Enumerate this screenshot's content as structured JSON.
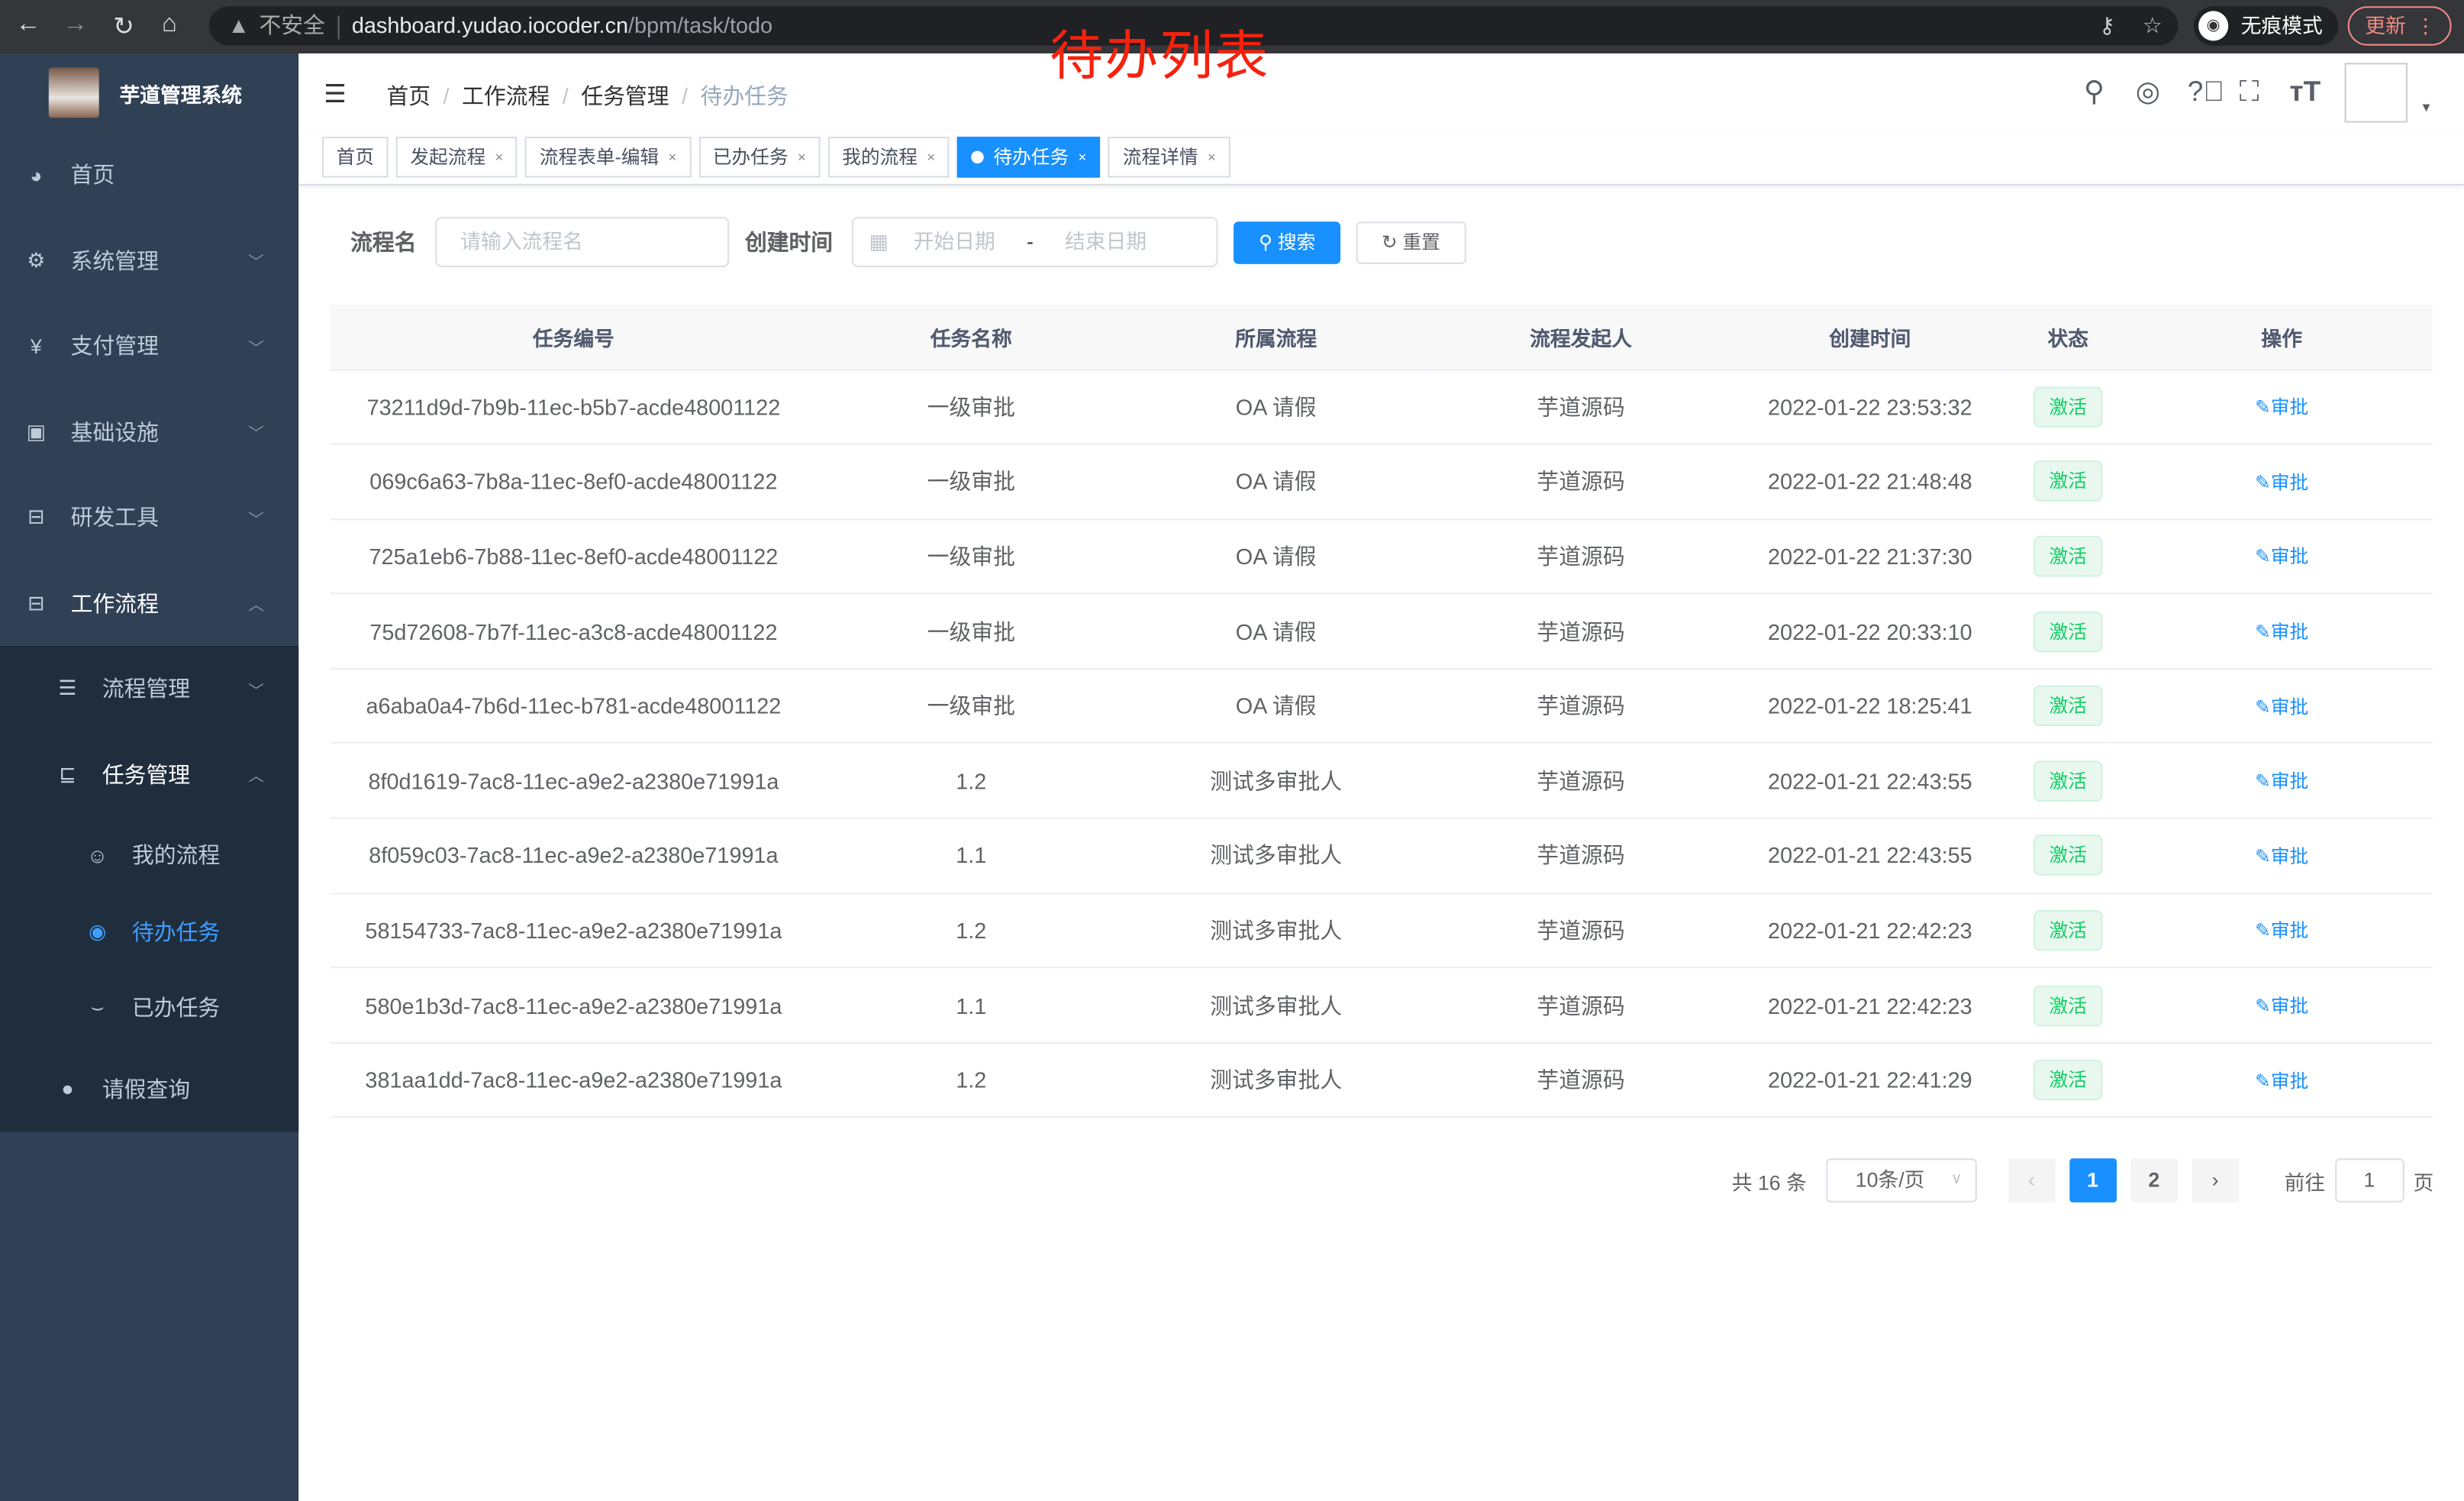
{
  "browser": {
    "insecure": "不安全",
    "url_host": "dashboard.yudao.iocoder.cn",
    "url_path": "/bpm/task/todo",
    "incognito": "无痕模式",
    "update": "更新"
  },
  "annotation": "待办列表",
  "sidebar": {
    "title": "芋道管理系统",
    "items": [
      {
        "label": "首页",
        "icon": "dashboard-icon"
      },
      {
        "label": "系统管理",
        "icon": "gear-icon"
      },
      {
        "label": "支付管理",
        "icon": "yen-icon"
      },
      {
        "label": "基础设施",
        "icon": "monitor-icon"
      },
      {
        "label": "研发工具",
        "icon": "toolbox-icon"
      },
      {
        "label": "工作流程",
        "icon": "briefcase-icon"
      }
    ],
    "workflow_sub": [
      {
        "label": "流程管理"
      },
      {
        "label": "任务管理"
      }
    ],
    "task_sub": [
      {
        "label": "我的流程"
      },
      {
        "label": "待办任务"
      },
      {
        "label": "已办任务"
      }
    ],
    "leave": "请假查询"
  },
  "breadcrumb": [
    "首页",
    "工作流程",
    "任务管理",
    "待办任务"
  ],
  "tabs": [
    {
      "label": "首页"
    },
    {
      "label": "发起流程"
    },
    {
      "label": "流程表单-编辑"
    },
    {
      "label": "已办任务"
    },
    {
      "label": "我的流程"
    },
    {
      "label": "待办任务",
      "active": true
    },
    {
      "label": "流程详情"
    }
  ],
  "search": {
    "name_label": "流程名",
    "name_placeholder": "请输入流程名",
    "time_label": "创建时间",
    "start_placeholder": "开始日期",
    "range_sep": "-",
    "end_placeholder": "结束日期",
    "search": "搜索",
    "reset": "重置"
  },
  "table": {
    "headers": [
      "任务编号",
      "任务名称",
      "所属流程",
      "流程发起人",
      "创建时间",
      "状态",
      "操作"
    ],
    "rows": [
      [
        "73211d9d-7b9b-11ec-b5b7-acde48001122",
        "一级审批",
        "OA 请假",
        "芋道源码",
        "2022-01-22 23:53:32",
        "激活",
        "审批"
      ],
      [
        "069c6a63-7b8a-11ec-8ef0-acde48001122",
        "一级审批",
        "OA 请假",
        "芋道源码",
        "2022-01-22 21:48:48",
        "激活",
        "审批"
      ],
      [
        "725a1eb6-7b88-11ec-8ef0-acde48001122",
        "一级审批",
        "OA 请假",
        "芋道源码",
        "2022-01-22 21:37:30",
        "激活",
        "审批"
      ],
      [
        "75d72608-7b7f-11ec-a3c8-acde48001122",
        "一级审批",
        "OA 请假",
        "芋道源码",
        "2022-01-22 20:33:10",
        "激活",
        "审批"
      ],
      [
        "a6aba0a4-7b6d-11ec-b781-acde48001122",
        "一级审批",
        "OA 请假",
        "芋道源码",
        "2022-01-22 18:25:41",
        "激活",
        "审批"
      ],
      [
        "8f0d1619-7ac8-11ec-a9e2-a2380e71991a",
        "1.2",
        "测试多审批人",
        "芋道源码",
        "2022-01-21 22:43:55",
        "激活",
        "审批"
      ],
      [
        "8f059c03-7ac8-11ec-a9e2-a2380e71991a",
        "1.1",
        "测试多审批人",
        "芋道源码",
        "2022-01-21 22:43:55",
        "激活",
        "审批"
      ],
      [
        "58154733-7ac8-11ec-a9e2-a2380e71991a",
        "1.2",
        "测试多审批人",
        "芋道源码",
        "2022-01-21 22:42:23",
        "激活",
        "审批"
      ],
      [
        "580e1b3d-7ac8-11ec-a9e2-a2380e71991a",
        "1.1",
        "测试多审批人",
        "芋道源码",
        "2022-01-21 22:42:23",
        "激活",
        "审批"
      ],
      [
        "381aa1dd-7ac8-11ec-a9e2-a2380e71991a",
        "1.2",
        "测试多审批人",
        "芋道源码",
        "2022-01-21 22:41:29",
        "激活",
        "审批"
      ]
    ]
  },
  "pagination": {
    "total": "共 16 条",
    "page_size": "10条/页",
    "pages": [
      "1",
      "2"
    ],
    "current": "1",
    "goto": "前往",
    "goto_value": "1",
    "page_unit": "页"
  },
  "colors": {
    "primary": "#1890ff",
    "sidebar": "#304156",
    "status_green": "#13ce66"
  }
}
